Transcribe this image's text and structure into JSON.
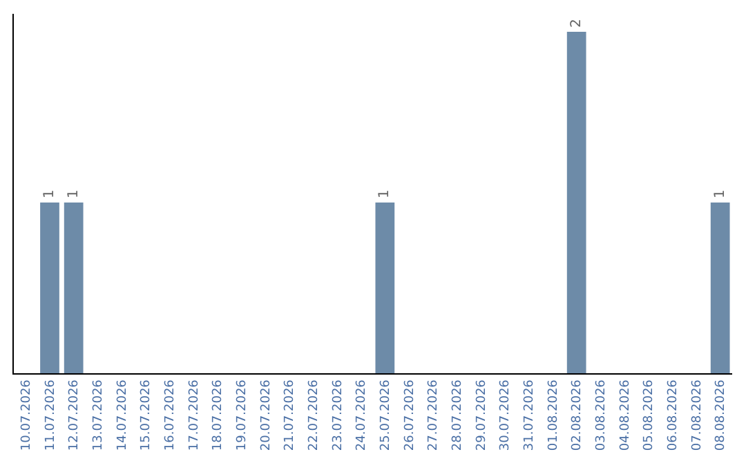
{
  "chart_data": {
    "type": "bar",
    "categories": [
      "10.07.2026",
      "11.07.2026",
      "12.07.2026",
      "13.07.2026",
      "14.07.2026",
      "15.07.2026",
      "16.07.2026",
      "17.07.2026",
      "18.07.2026",
      "19.07.2026",
      "20.07.2026",
      "21.07.2026",
      "22.07.2026",
      "23.07.2026",
      "24.07.2026",
      "25.07.2026",
      "26.07.2026",
      "27.07.2026",
      "28.07.2026",
      "29.07.2026",
      "30.07.2026",
      "31.07.2026",
      "01.08.2026",
      "02.08.2026",
      "03.08.2026",
      "04.08.2026",
      "05.08.2026",
      "06.08.2026",
      "07.08.2026",
      "08.08.2026"
    ],
    "values": [
      0,
      1,
      1,
      0,
      0,
      0,
      0,
      0,
      0,
      0,
      0,
      0,
      0,
      0,
      0,
      1,
      0,
      0,
      0,
      0,
      0,
      0,
      0,
      2,
      0,
      0,
      0,
      0,
      0,
      1
    ],
    "value_labels": [
      null,
      "1",
      "1",
      null,
      null,
      null,
      null,
      null,
      null,
      null,
      null,
      null,
      null,
      null,
      null,
      "1",
      null,
      null,
      null,
      null,
      null,
      null,
      null,
      "2",
      null,
      null,
      null,
      null,
      null,
      "1"
    ],
    "color": "#6d8ba8",
    "tick_labels": "x"
  }
}
